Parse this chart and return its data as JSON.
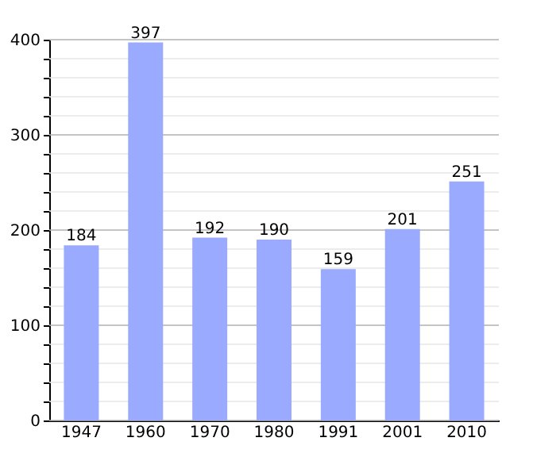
{
  "chart_data": {
    "type": "bar",
    "categories": [
      "1947",
      "1960",
      "1970",
      "1980",
      "1991",
      "2001",
      "2010"
    ],
    "values": [
      184,
      397,
      192,
      190,
      159,
      201,
      251
    ],
    "color": "#99aaff",
    "ylim": [
      0,
      400
    ],
    "yticks": [
      0,
      {
        "value": 20,
        "label": null
      },
      {
        "value": 40,
        "label": null
      },
      {
        "value": 60,
        "label": null
      },
      {
        "value": 80,
        "label": null
      },
      100,
      {
        "value": 120,
        "label": null
      },
      {
        "value": 140,
        "label": null
      },
      {
        "value": 160,
        "label": null
      },
      {
        "value": 180,
        "label": null
      },
      200,
      {
        "value": 220,
        "label": null
      },
      {
        "value": 240,
        "label": null
      },
      {
        "value": 260,
        "label": null
      },
      {
        "value": 280,
        "label": null
      },
      300,
      {
        "value": 320,
        "label": null
      },
      {
        "value": 340,
        "label": null
      },
      {
        "value": 360,
        "label": null
      },
      {
        "value": 380,
        "label": null
      },
      400
    ],
    "grid": "y",
    "data_labels": true
  }
}
